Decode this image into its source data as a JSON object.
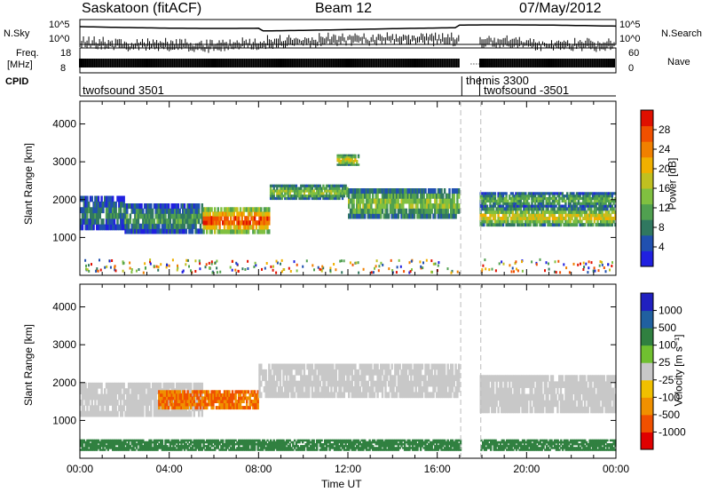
{
  "header": {
    "station": "Saskatoon (fitACF)",
    "beam": "Beam 12",
    "date": "07/May/2012"
  },
  "strip_labels": {
    "left_top": "N.Sky",
    "left_top_scale_hi": "10^5",
    "left_top_scale_lo": "10^0",
    "right_top": "N.Search",
    "right_top_scale_hi": "10^5",
    "right_top_scale_lo": "10^0",
    "freq_label_1": "Freq.",
    "freq_label_2": "[MHz]",
    "freq_hi": "18",
    "freq_lo": "8",
    "nave_label": "Nave",
    "nave_hi": "60",
    "nave_lo": "0",
    "cpid_label": "CPID"
  },
  "cpid_segments": [
    {
      "start_hour": 0.0,
      "end_hour": 17.1,
      "label": "twofsound 3501"
    },
    {
      "start_hour": 17.1,
      "end_hour": 17.9,
      "label": "themis 3300"
    },
    {
      "start_hour": 17.9,
      "end_hour": 24.0,
      "label": "twofsound -3501"
    }
  ],
  "chart_data": [
    {
      "type": "heatmap",
      "name": "power",
      "ylabel": "Slant Range [km]",
      "ylim": [
        0,
        4600
      ],
      "yticks": [
        1000,
        2000,
        3000,
        4000
      ],
      "colorbar_label": "Power [dB]",
      "colorbar_ticks": [
        "4",
        "8",
        "12",
        "16",
        "20",
        "24",
        "28"
      ],
      "colorbar_colors": [
        "#2020e0",
        "#2050b0",
        "#307860",
        "#50a050",
        "#80c040",
        "#c0c020",
        "#f0b000",
        "#f08000",
        "#f05000",
        "#e01000"
      ],
      "echo_bands": [
        {
          "start_hour": 0.0,
          "end_hour": 2.0,
          "range_lo": 1200,
          "range_hi": 2100,
          "power_db": 10
        },
        {
          "start_hour": 2.0,
          "end_hour": 5.5,
          "range_lo": 1100,
          "range_hi": 1900,
          "power_db": 12
        },
        {
          "start_hour": 5.5,
          "end_hour": 8.5,
          "range_lo": 1100,
          "range_hi": 1800,
          "power_db": 28
        },
        {
          "start_hour": 8.5,
          "end_hour": 12.0,
          "range_lo": 2000,
          "range_hi": 2400,
          "power_db": 16
        },
        {
          "start_hour": 11.5,
          "end_hour": 12.5,
          "range_lo": 2900,
          "range_hi": 3200,
          "power_db": 20
        },
        {
          "start_hour": 12.0,
          "end_hour": 17.0,
          "range_lo": 1500,
          "range_hi": 2300,
          "power_db": 16
        },
        {
          "start_hour": 17.9,
          "end_hour": 24.0,
          "range_lo": 1300,
          "range_hi": 1800,
          "power_db": 20
        },
        {
          "start_hour": 17.9,
          "end_hour": 24.0,
          "range_lo": 1800,
          "range_hi": 2200,
          "power_db": 14
        }
      ]
    },
    {
      "type": "heatmap",
      "name": "velocity",
      "ylabel": "Slant Range [km]",
      "xlabel": "Time UT",
      "ylim": [
        0,
        4600
      ],
      "yticks": [
        1000,
        2000,
        3000,
        4000
      ],
      "xlim": [
        0,
        24
      ],
      "xticks": [
        "00:00",
        "04:00",
        "08:00",
        "12:00",
        "16:00",
        "20:00",
        "00:00"
      ],
      "colorbar_label": "Velocity [m s⁻¹]",
      "colorbar_ticks": [
        "-1000",
        "-500",
        "-100",
        "-25",
        "25",
        "100",
        "500",
        "1000"
      ],
      "colorbar_colors": [
        "#e00000",
        "#f05000",
        "#f09000",
        "#f0c000",
        "#c8c8c8",
        "#70c030",
        "#308040",
        "#2060a0",
        "#2020c0"
      ],
      "echo_bands": [
        {
          "start_hour": 0.0,
          "end_hour": 5.5,
          "range_lo": 1100,
          "range_hi": 2000,
          "velocity": 0
        },
        {
          "start_hour": 3.5,
          "end_hour": 8.0,
          "range_lo": 1300,
          "range_hi": 1800,
          "velocity": -300
        },
        {
          "start_hour": 8.0,
          "end_hour": 17.0,
          "range_lo": 1600,
          "range_hi": 2500,
          "velocity": 0
        },
        {
          "start_hour": 17.9,
          "end_hour": 24.0,
          "range_lo": 1200,
          "range_hi": 2200,
          "velocity": 0
        },
        {
          "start_hour": 0.0,
          "end_hour": 24.0,
          "range_lo": 200,
          "range_hi": 500,
          "velocity": 80
        }
      ]
    }
  ]
}
